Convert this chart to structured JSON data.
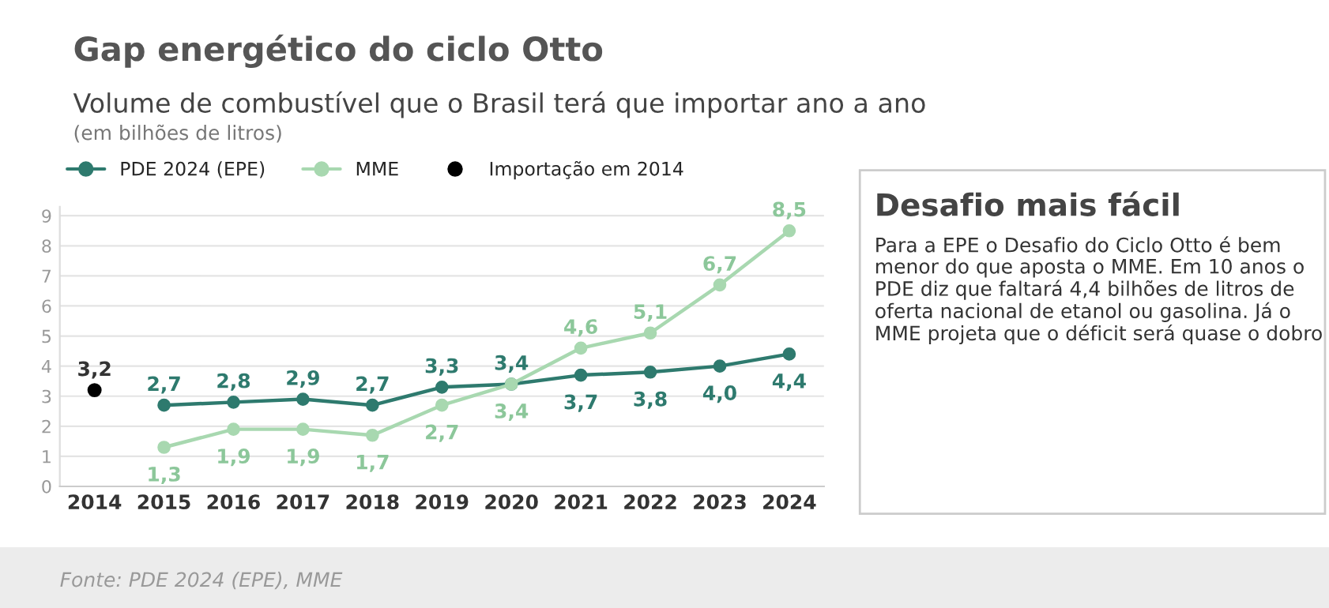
{
  "chart_data": {
    "type": "line",
    "title": "Gap energético do ciclo Otto",
    "subtitle": "Volume de combustível que o Brasil terá que importar ano a ano",
    "annotations": [
      "(em bilhões de litros)",
      "Desafio mais fácil",
      "Para a EPE o Desafio do Ciclo Otto é bem menor do que aposta o MME. Em 10 anos o PDE diz que faltará 4,4 bilhões de litros de oferta nacional de etanol ou gasolina. Já o MME projeta que o déficit será quase o dobro",
      "Fonte: PDE 2024 (EPE), MME"
    ],
    "categories": [
      "2014",
      "2015",
      "2016",
      "2017",
      "2018",
      "2019",
      "2020",
      "2021",
      "2022",
      "2023",
      "2024"
    ],
    "series": [
      {
        "name": "PDE 2024 (EPE)",
        "color": "#2e7a6e",
        "values": [
          null,
          2.7,
          2.8,
          2.9,
          2.7,
          3.3,
          3.4,
          3.7,
          3.8,
          4.0,
          4.4
        ],
        "value_labels": [
          null,
          "2,7",
          "2,8",
          "2,9",
          "2,7",
          "3,3",
          "3,4",
          "3,7",
          "3,8",
          "4,0",
          "4,4"
        ]
      },
      {
        "name": "MME",
        "color": "#a8d8b0",
        "values": [
          null,
          1.3,
          1.9,
          1.9,
          1.7,
          2.7,
          3.4,
          4.6,
          5.1,
          6.7,
          8.5
        ],
        "value_labels": [
          null,
          "1,3",
          "1,9",
          "1,9",
          "1,7",
          "2,7",
          "3,4",
          "4,6",
          "5,1",
          "6,7",
          "8,5"
        ]
      },
      {
        "name": "Importação em 2014",
        "color": "#000000",
        "type": "scatter",
        "values": [
          3.2,
          null,
          null,
          null,
          null,
          null,
          null,
          null,
          null,
          null,
          null
        ],
        "value_labels": [
          "3,2",
          null,
          null,
          null,
          null,
          null,
          null,
          null,
          null,
          null,
          null
        ]
      }
    ],
    "ylim": [
      0,
      9.3
    ],
    "yticks": [
      0,
      1,
      2,
      3,
      4,
      5,
      6,
      7,
      8,
      9
    ],
    "grid": "y",
    "legend": "top left",
    "marker": "circle",
    "line_style": "solid"
  }
}
